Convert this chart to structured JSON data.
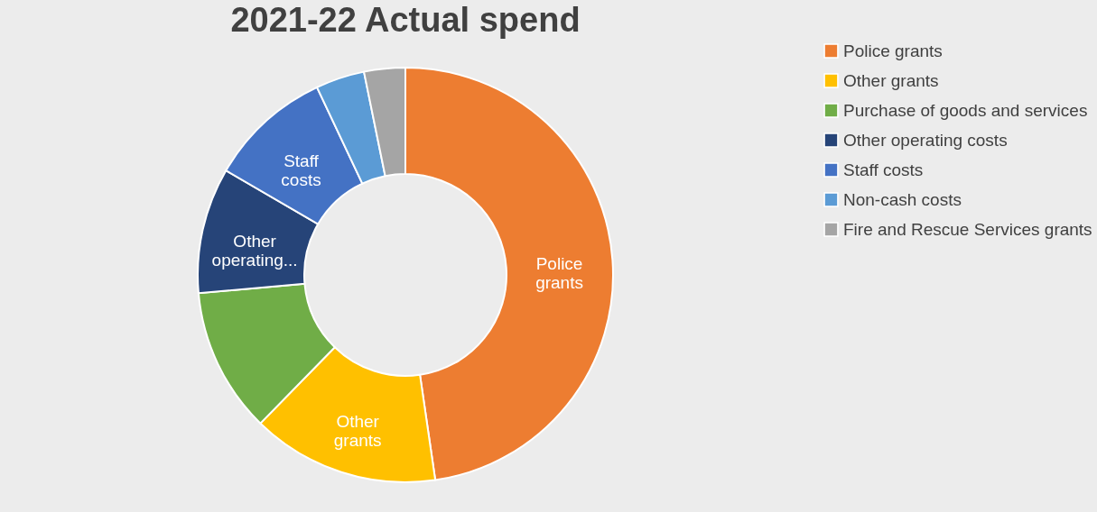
{
  "chart_data": {
    "type": "donut",
    "title": "2021-22 Actual spend",
    "categories": [
      "Police grants",
      "Other grants",
      "Purchase of goods and services",
      "Other operating costs",
      "Staff costs",
      "Non-cash costs",
      "Fire and Rescue Services grants"
    ],
    "values": [
      47.7,
      14.6,
      11.3,
      9.8,
      9.6,
      3.8,
      3.2
    ],
    "colors": [
      "#ed7d31",
      "#ffc000",
      "#70ad47",
      "#264478",
      "#4472c4",
      "#5b9bd5",
      "#a5a5a5"
    ],
    "value_labels": [
      "Police grants",
      "Other grants",
      null,
      "Other operating...",
      "Staff costs",
      null,
      null
    ],
    "legend": "right"
  }
}
